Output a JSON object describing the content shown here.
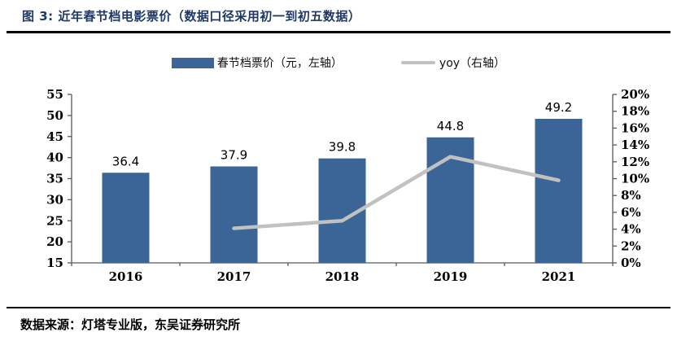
{
  "figure": {
    "title": "图 3:  近年春节档电影票价（数据口径采用初一到初五数据）",
    "source": "数据来源：灯塔专业版，东吴证券研究所"
  },
  "colors": {
    "bar": "#3B6596",
    "line": "#C1C1C1",
    "title_text": "#1F3864",
    "axis": "#595959",
    "label_text": "#000000"
  },
  "chart_data": {
    "type": "bar",
    "subtype": "bar+line-combo",
    "title": "近年春节档电影票价（数据口径采用初一到初五数据）",
    "categories": [
      "2016",
      "2017",
      "2018",
      "2019",
      "2021"
    ],
    "series": [
      {
        "name": "春节档票价（元，左轴）",
        "type": "bar",
        "axis": "left",
        "values": [
          36.4,
          37.9,
          39.8,
          44.8,
          49.2
        ],
        "data_labels": [
          "36.4",
          "37.9",
          "39.8",
          "44.8",
          "49.2"
        ],
        "color": "#3B6596"
      },
      {
        "name": "yoy（右轴）",
        "type": "line",
        "axis": "right",
        "values_pct": [
          null,
          4.1,
          5.0,
          12.6,
          9.8
        ],
        "color": "#C1C1C1"
      }
    ],
    "left_axis": {
      "min": 15,
      "max": 55,
      "step": 5,
      "tick_labels": [
        "15",
        "20",
        "25",
        "30",
        "35",
        "40",
        "45",
        "50",
        "55"
      ]
    },
    "right_axis": {
      "min": 0,
      "max": 20,
      "step": 2,
      "unit": "%",
      "tick_labels": [
        "0%",
        "2%",
        "4%",
        "6%",
        "8%",
        "10%",
        "12%",
        "14%",
        "16%",
        "18%",
        "20%"
      ]
    },
    "legend_position": "top",
    "grid": false
  }
}
